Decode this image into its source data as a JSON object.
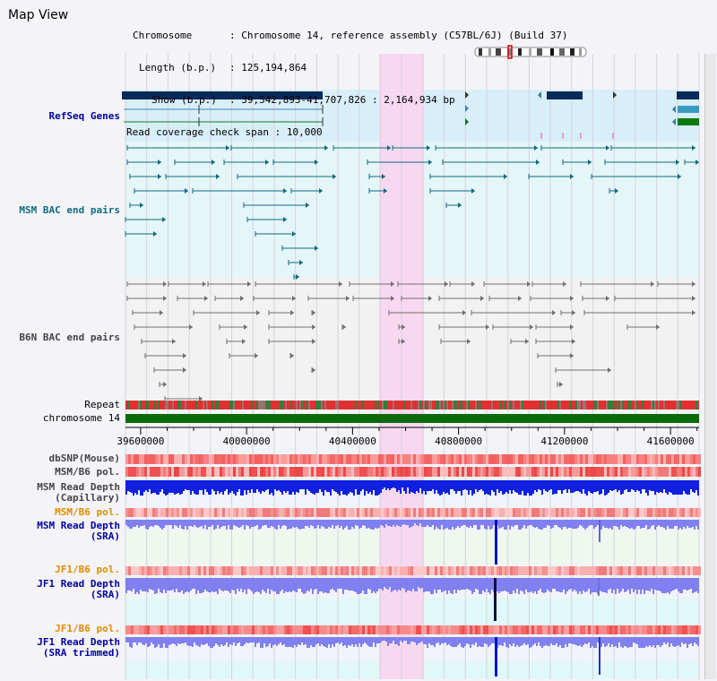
{
  "page": {
    "title": "Map View"
  },
  "info": {
    "chromosome_label": "Chromosome",
    "chromosome_value": "Chromosome 14, reference assembly (C57BL/6J) (Build 37)",
    "length_label": "Length (b.p.)",
    "length_value": "125,194,864",
    "show_label": "Show (b.p.)",
    "show_value": "39,542,893-41,707,826 : 2,164,934 bp",
    "coverage_label": "Read coverage check span",
    "coverage_value": "10,000"
  },
  "tracks": {
    "refseq": "RefSeq Genes",
    "msm_bac": "MSM BAC end pairs",
    "b6n_bac": "B6N BAC end pairs",
    "repeat": "Repeat",
    "chromosome": "chromosome 14",
    "dbsnp": "dbSNP(Mouse)",
    "msm_b6_pol": "MSM/B6 pol.",
    "msm_depth_cap_1": "MSM Read Depth",
    "msm_depth_cap_2": "(Capillary)",
    "msm_b6_pol_2": "MSM/B6 pol.",
    "msm_depth_sra_1": "MSM Read Depth",
    "msm_depth_sra_2": "(SRA)",
    "jf1_b6_pol": "JF1/B6 pol.",
    "jf1_depth_sra_1": "JF1 Read Depth",
    "jf1_depth_sra_2": "(SRA)",
    "jf1_b6_pol_2": "JF1/B6 pol.",
    "jf1_depth_trim_1": "JF1 Read Depth",
    "jf1_depth_trim_2": "(SRA trimmed)"
  },
  "axis": {
    "ticks": [
      "39600000",
      "40000000",
      "40400000",
      "40800000",
      "41200000",
      "41600000"
    ],
    "tick_values": [
      39600000,
      40000000,
      40400000,
      40800000,
      41200000,
      41600000
    ],
    "start": 39542893,
    "end": 41707826
  },
  "highlight": {
    "start": 40500000,
    "end": 40670000
  },
  "colors": {
    "refseq_bg": "#d8eef8",
    "msm_bg": "#e4f6f8",
    "b6n_bg": "#f2f2f2",
    "highlight": "#f8d8f0",
    "gene_dark": "#0a2a5a",
    "msm_feature": "#106a80",
    "b6n_feature": "#707070",
    "chromosome_bar": "#0a6a0a",
    "depth_capillary": "#1020e0",
    "depth_sra": "#8080f0",
    "label_dark_blue": "#0000a0",
    "label_orange": "#e08a00",
    "label_teal": "#106a80"
  }
}
